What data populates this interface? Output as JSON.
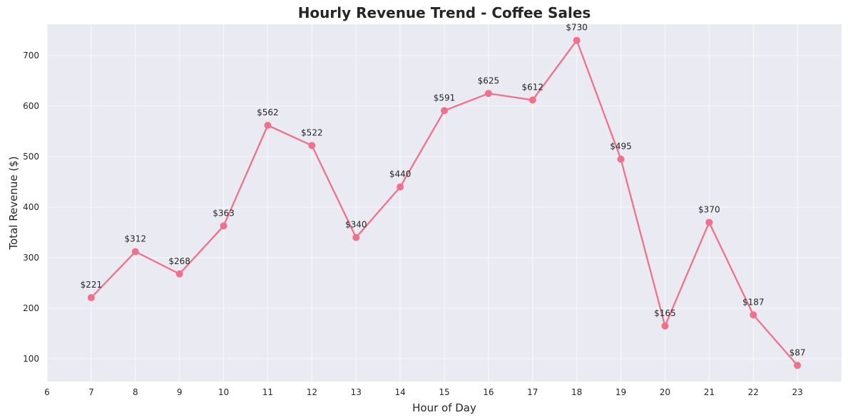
{
  "chart_data": {
    "type": "line",
    "title": "Hourly Revenue Trend - Coffee Sales",
    "xlabel": "Hour of Day",
    "ylabel": "Total Revenue ($)",
    "x": [
      7,
      8,
      9,
      10,
      11,
      12,
      13,
      14,
      15,
      16,
      17,
      18,
      19,
      20,
      21,
      22,
      23
    ],
    "series": [
      {
        "values": [
          221,
          312,
          268,
          363,
          562,
          522,
          340,
          440,
          591,
          625,
          612,
          730,
          495,
          165,
          370,
          187,
          87
        ],
        "data_labels": [
          "$221",
          "$312",
          "$268",
          "$363",
          "$562",
          "$522",
          "$340",
          "$440",
          "$591",
          "$625",
          "$612",
          "$730",
          "$495",
          "$165",
          "$370",
          "$187",
          "$87"
        ],
        "color": "#f0718a"
      }
    ],
    "xticks": [
      6,
      7,
      8,
      9,
      10,
      11,
      12,
      13,
      14,
      15,
      16,
      17,
      18,
      19,
      20,
      21,
      22,
      23
    ],
    "yticks": [
      100,
      200,
      300,
      400,
      500,
      600,
      700
    ],
    "xlim": [
      6,
      24
    ],
    "ylim": [
      55,
      762
    ],
    "grid": true,
    "background": "#eaeaf2"
  }
}
